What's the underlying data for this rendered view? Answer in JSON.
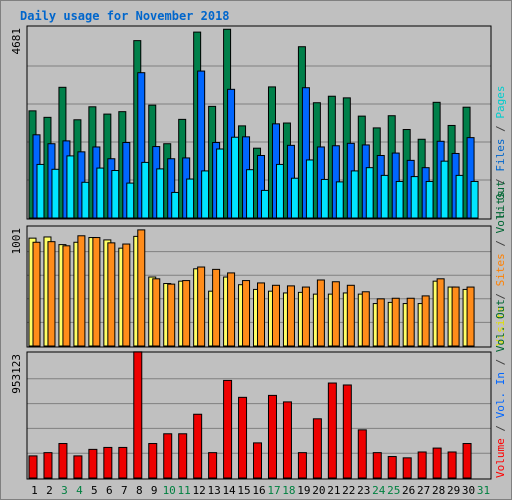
{
  "chart_data": {
    "type": "bar",
    "title": "Daily usage for November 2018",
    "categories": [
      "1",
      "2",
      "3",
      "4",
      "5",
      "6",
      "7",
      "8",
      "9",
      "10",
      "11",
      "12",
      "13",
      "14",
      "15",
      "16",
      "17",
      "18",
      "19",
      "20",
      "21",
      "22",
      "23",
      "24",
      "25",
      "26",
      "27",
      "28",
      "29",
      "30",
      "31"
    ],
    "weekend_days": [
      "3",
      "4",
      "10",
      "11",
      "17",
      "18",
      "24",
      "25",
      "31"
    ],
    "panels": [
      {
        "max_label": "4681",
        "ymax": 4681,
        "right_label": [
          {
            "text": "Hits",
            "color": "#006633"
          },
          {
            "text": " / ",
            "color": "#404040"
          },
          {
            "text": "Files",
            "color": "#0066cc"
          },
          {
            "text": " / ",
            "color": "#404040"
          },
          {
            "text": "Pages",
            "color": "#00cccc"
          }
        ],
        "series": [
          {
            "name": "Hits",
            "color": "#00804a",
            "values": [
              2640,
              2480,
              3220,
              2420,
              2740,
              2560,
              2620,
              4370,
              2780,
              1830,
              2430,
              4580,
              2750,
              4650,
              2270,
              1720,
              3230,
              2340,
              4220,
              2840,
              3000,
              2960,
              2510,
              2220,
              2520,
              2180,
              1940,
              2850,
              2280,
              2730,
              0
            ]
          },
          {
            "name": "Files",
            "color": "#0066ff",
            "values": [
              2050,
              1830,
              1900,
              1630,
              1750,
              1460,
              1860,
              3580,
              1760,
              1460,
              1480,
              3620,
              1860,
              3170,
              2000,
              1540,
              2320,
              1790,
              3210,
              1750,
              1780,
              1840,
              1800,
              1540,
              1600,
              1420,
              1240,
              1890,
              1590,
              1980,
              0
            ]
          },
          {
            "name": "Pages",
            "color": "#00e5ff",
            "values": [
              1320,
              1200,
              1530,
              880,
              1230,
              1170,
              860,
              1370,
              1210,
              630,
              960,
              1160,
              1700,
              1990,
              1190,
              680,
              1320,
              980,
              1430,
              950,
              890,
              1160,
              1240,
              1050,
              900,
              1020,
              900,
              1400,
              1050,
              900,
              0
            ]
          }
        ]
      },
      {
        "max_label": "1001",
        "ymax": 1001,
        "right_label": [
          {
            "text": "Visits",
            "color": "#e0e000"
          },
          {
            "text": " / ",
            "color": "#404040"
          },
          {
            "text": "Sites",
            "color": "#ff8000"
          },
          {
            "text": " / ",
            "color": "#404040"
          },
          {
            "text": "Vol. Out",
            "color": "#006633"
          }
        ],
        "series": [
          {
            "name": "Visits",
            "color": "#ffff66",
            "values": [
              915,
              925,
              860,
              880,
              920,
              900,
              830,
              930,
              585,
              530,
              550,
              655,
              465,
              585,
              520,
              480,
              465,
              450,
              455,
              440,
              440,
              450,
              440,
              360,
              370,
              360,
              360,
              550,
              500,
              480,
              0
            ]
          },
          {
            "name": "Sites",
            "color": "#ff8c1a",
            "values": [
              880,
              885,
              850,
              935,
              920,
              875,
              865,
              985,
              570,
              525,
              555,
              670,
              650,
              620,
              555,
              535,
              515,
              510,
              500,
              560,
              545,
              515,
              460,
              400,
              405,
              405,
              425,
              570,
              500,
              500,
              0
            ]
          },
          {
            "name": "Vol. Out",
            "color": "#00a060",
            "values": [
              0,
              0,
              0,
              0,
              0,
              0,
              0,
              0,
              0,
              0,
              0,
              0,
              0,
              0,
              0,
              0,
              0,
              0,
              0,
              0,
              0,
              0,
              0,
              0,
              0,
              0,
              0,
              0,
              0,
              0,
              0
            ]
          }
        ]
      },
      {
        "max_label": "953123",
        "ymax": 953123,
        "right_label": [
          {
            "text": "Volume",
            "color": "#ff0000"
          },
          {
            "text": " / ",
            "color": "#404040"
          },
          {
            "text": "Vol. In",
            "color": "#0066ff"
          },
          {
            "text": " / ",
            "color": "#404040"
          },
          {
            "text": "Vol. Out",
            "color": "#006633"
          }
        ],
        "series": [
          {
            "name": "Volume",
            "color": "#ee0000",
            "values": [
              170000,
              195000,
              265000,
              170000,
              220000,
              235000,
              235000,
              970000,
              265000,
              340000,
              340000,
              490000,
              195000,
              750000,
              620000,
              270000,
              635000,
              585000,
              195000,
              455000,
              730000,
              715000,
              370000,
              195000,
              165000,
              155000,
              200000,
              230000,
              200000,
              265000,
              0
            ]
          }
        ]
      }
    ]
  }
}
